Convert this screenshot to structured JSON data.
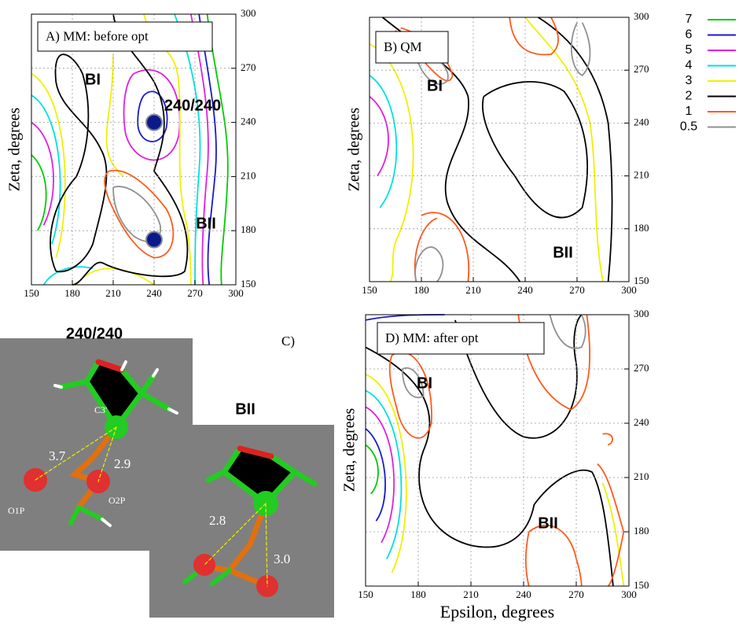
{
  "panels": [
    {
      "label": "A) MM: before opt",
      "y_label": "Zeta, degrees",
      "xlim": [
        150,
        300
      ],
      "ylim": [
        150,
        300
      ],
      "xticks": [
        150,
        180,
        210,
        240,
        270,
        300
      ],
      "yticks": [
        150,
        180,
        210,
        240,
        270,
        300
      ],
      "annotations": [
        "BI",
        "240/240",
        "BII"
      ],
      "points": [
        {
          "x": 240,
          "y": 240
        },
        {
          "x": 240,
          "y": 175
        }
      ]
    },
    {
      "label": "B) QM",
      "y_label": "Zeta, degrees",
      "xlim": [
        150,
        300
      ],
      "ylim": [
        150,
        300
      ],
      "xticks": [
        150,
        180,
        210,
        240,
        270,
        300
      ],
      "yticks": [
        150,
        180,
        210,
        240,
        270,
        300
      ],
      "annotations": [
        "BI",
        "BII"
      ]
    },
    {
      "label": "D) MM: after opt",
      "y_label": "Zeta, degrees",
      "x_label": "Epsilon, degrees",
      "xlim": [
        150,
        300
      ],
      "ylim": [
        150,
        300
      ],
      "xticks": [
        150,
        180,
        210,
        240,
        270,
        300
      ],
      "yticks": [
        150,
        180,
        210,
        240,
        270,
        300
      ],
      "annotations": [
        "BI",
        "BII"
      ]
    }
  ],
  "legend": {
    "levels": [
      7,
      6,
      5,
      4,
      3,
      2,
      1,
      0.5
    ],
    "colors": [
      "#00cc00",
      "#1a1acc",
      "#e020e0",
      "#00e0e0",
      "#f0f000",
      "#000000",
      "#ff5a1a",
      "#909090"
    ]
  },
  "molecules": {
    "label": "C)",
    "left": {
      "title": "240/240",
      "atoms": [
        "C3'",
        "O1P",
        "O2P"
      ],
      "distances": [
        "3.7",
        "2.9"
      ]
    },
    "right": {
      "title": "BII",
      "distances": [
        "2.8",
        "3.0"
      ]
    }
  }
}
